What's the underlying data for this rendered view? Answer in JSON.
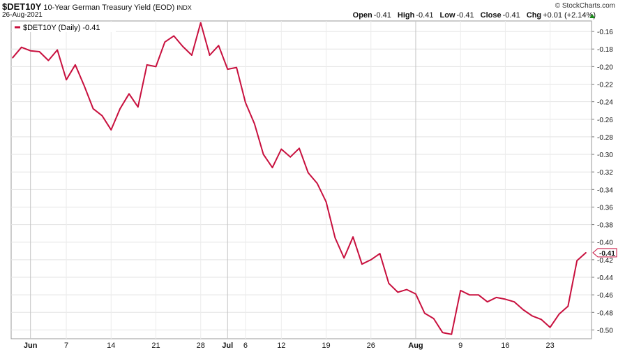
{
  "header": {
    "symbol": "$DET10Y",
    "description": "10-Year German Treasury Yield (EOD)",
    "exchange": "INDX",
    "date": "26-Aug-2021",
    "brand": "© StockCharts.com",
    "open_label": "Open",
    "open_value": "-0.41",
    "high_label": "High",
    "high_value": "-0.41",
    "low_label": "Low",
    "low_value": "-0.41",
    "close_label": "Close",
    "close_value": "-0.41",
    "chg_label": "Chg",
    "chg_value": "+0.01 (+2.14%)",
    "accent_up": "#1a8a1a"
  },
  "legend": {
    "label": "$DET10Y (Daily) -0.41",
    "color": "#c8103e"
  },
  "chart_data": {
    "type": "line",
    "title": "",
    "xlabel": "",
    "ylabel": "",
    "ylim": [
      -0.51,
      -0.148
    ],
    "y_ticks": [
      -0.16,
      -0.18,
      -0.2,
      -0.22,
      -0.24,
      -0.26,
      -0.28,
      -0.3,
      -0.32,
      -0.34,
      -0.36,
      -0.38,
      -0.4,
      -0.42,
      -0.44,
      -0.46,
      -0.48,
      -0.5
    ],
    "last_value_label": "-0.41",
    "x_ticks": [
      {
        "label": "Jun",
        "index": 2,
        "bold": true,
        "grid": true
      },
      {
        "label": "7",
        "index": 6,
        "bold": false,
        "grid": false
      },
      {
        "label": "14",
        "index": 11,
        "bold": false,
        "grid": false
      },
      {
        "label": "21",
        "index": 16,
        "bold": false,
        "grid": false
      },
      {
        "label": "28",
        "index": 21,
        "bold": false,
        "grid": false
      },
      {
        "label": "Jul",
        "index": 24,
        "bold": true,
        "grid": true
      },
      {
        "label": "6",
        "index": 26,
        "bold": false,
        "grid": false
      },
      {
        "label": "12",
        "index": 30,
        "bold": false,
        "grid": false
      },
      {
        "label": "19",
        "index": 35,
        "bold": false,
        "grid": false
      },
      {
        "label": "26",
        "index": 40,
        "bold": false,
        "grid": false
      },
      {
        "label": "Aug",
        "index": 45,
        "bold": true,
        "grid": true
      },
      {
        "label": "9",
        "index": 50,
        "bold": false,
        "grid": false
      },
      {
        "label": "16",
        "index": 55,
        "bold": false,
        "grid": false
      },
      {
        "label": "23",
        "index": 60,
        "bold": false,
        "grid": false
      }
    ],
    "series": [
      {
        "values": [
          -0.19,
          -0.178,
          -0.182,
          -0.183,
          -0.193,
          -0.181,
          -0.215,
          -0.198,
          -0.222,
          -0.248,
          -0.256,
          -0.272,
          -0.248,
          -0.231,
          -0.246,
          -0.198,
          -0.2,
          -0.172,
          -0.165,
          -0.177,
          -0.187,
          -0.15,
          -0.187,
          -0.176,
          -0.203,
          -0.201,
          -0.241,
          -0.265,
          -0.3,
          -0.315,
          -0.294,
          -0.303,
          -0.293,
          -0.321,
          -0.333,
          -0.354,
          -0.395,
          -0.418,
          -0.394,
          -0.425,
          -0.42,
          -0.413,
          -0.447,
          -0.457,
          -0.454,
          -0.459,
          -0.481,
          -0.487,
          -0.503,
          -0.505,
          -0.455,
          -0.46,
          -0.46,
          -0.468,
          -0.463,
          -0.465,
          -0.468,
          -0.477,
          -0.484,
          -0.488,
          -0.497,
          -0.482,
          -0.473,
          -0.421,
          -0.412
        ]
      }
    ]
  }
}
